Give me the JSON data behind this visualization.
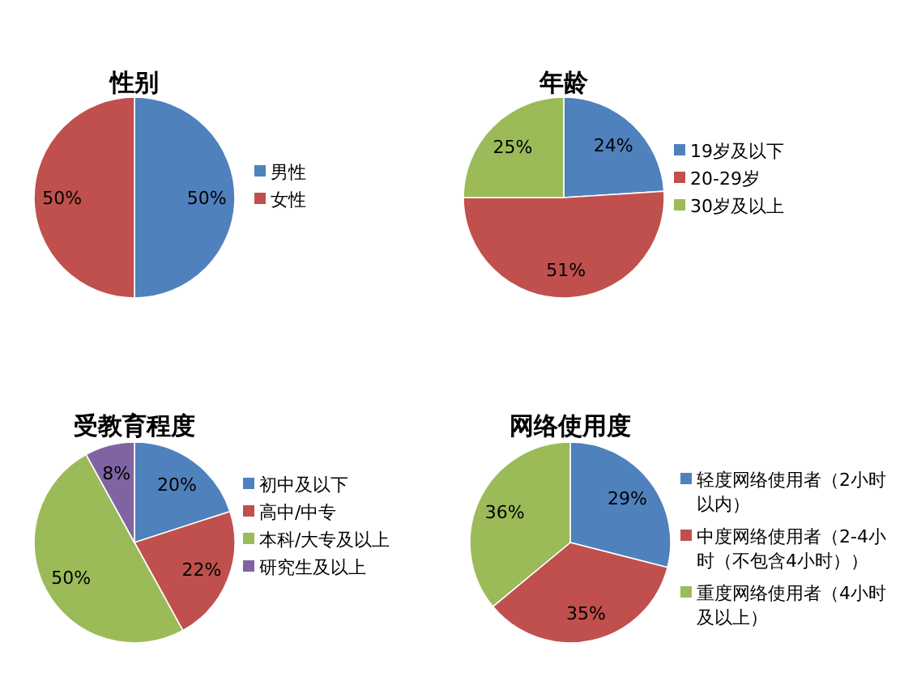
{
  "chart_data": [
    {
      "type": "pie",
      "title": "性别",
      "categories": [
        "男性",
        "女性"
      ],
      "values": [
        50,
        50
      ],
      "value_labels": [
        "50%",
        "50%"
      ],
      "colors": [
        "#4f81bd",
        "#c0504d"
      ],
      "legend": "right"
    },
    {
      "type": "pie",
      "title": "年龄",
      "categories": [
        "19岁及以下",
        "20-29岁",
        "30岁及以上"
      ],
      "values": [
        24,
        51,
        25
      ],
      "value_labels": [
        "24%",
        "51%",
        "25%"
      ],
      "colors": [
        "#4f81bd",
        "#c0504d",
        "#9bbb59"
      ],
      "legend": "right"
    },
    {
      "type": "pie",
      "title": "受教育程度",
      "categories": [
        "初中及以下",
        "高中/中专",
        "本科/大专及以上",
        "研究生及以上"
      ],
      "values": [
        20,
        22,
        50,
        8
      ],
      "value_labels": [
        "20%",
        "22%",
        "50%",
        "8%"
      ],
      "colors": [
        "#4f81bd",
        "#c0504d",
        "#9bbb59",
        "#8064a2"
      ],
      "legend": "right"
    },
    {
      "type": "pie",
      "title": "网络使用度",
      "categories": [
        "轻度网络使用者（2小时以内）",
        "中度网络使用者（2-4小时（不包含4小时））",
        "重度网络使用者（4小时及以上）"
      ],
      "values": [
        29,
        35,
        36
      ],
      "value_labels": [
        "29%",
        "35%",
        "36%"
      ],
      "colors": [
        "#4f81bd",
        "#c0504d",
        "#9bbb59"
      ],
      "legend": "right"
    }
  ]
}
